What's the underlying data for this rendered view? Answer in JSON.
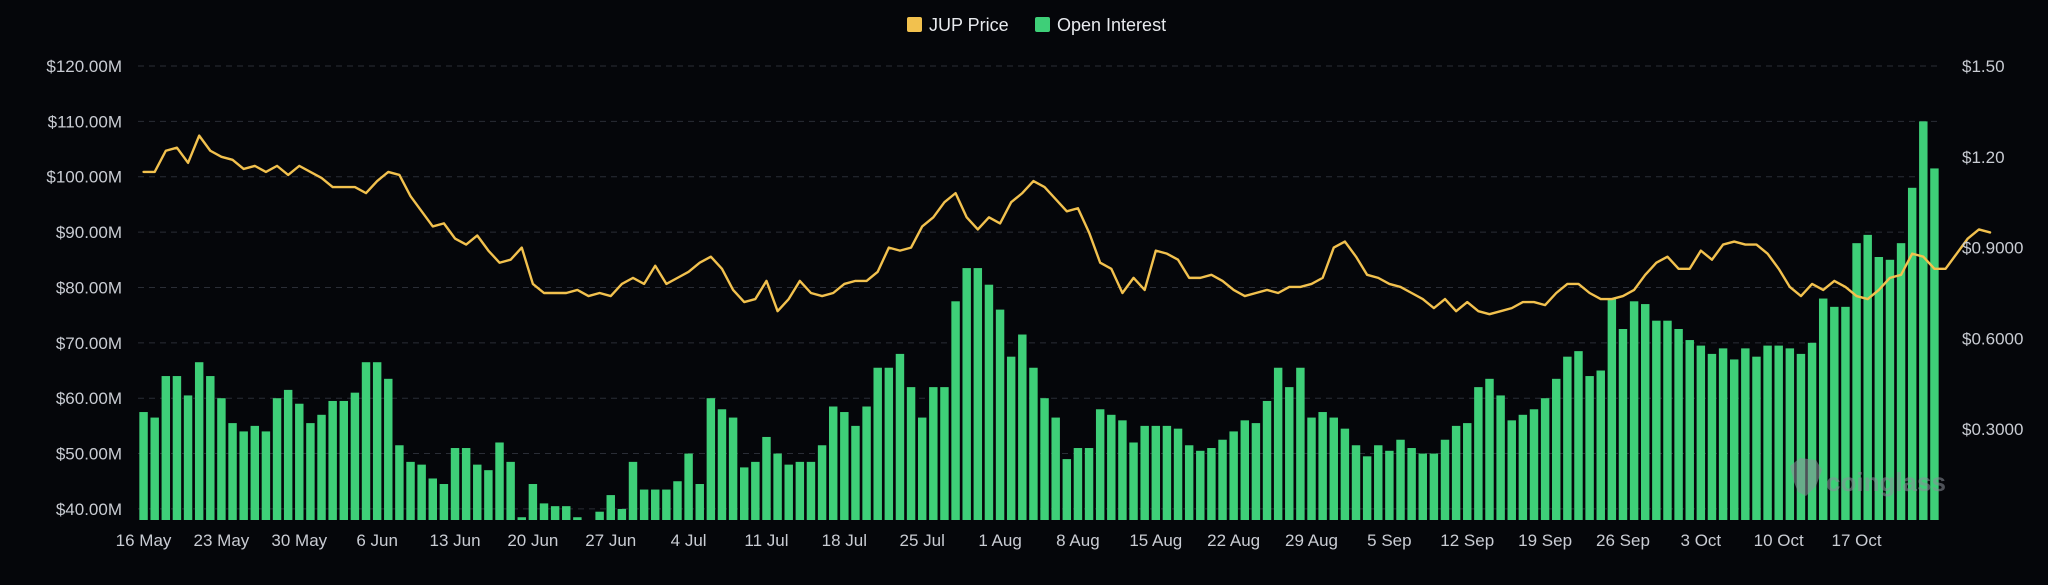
{
  "chart_data": {
    "type": "bar",
    "title": "",
    "legend": {
      "placement": "top-center",
      "items": [
        {
          "label": "JUP Price",
          "color": "#f2c14e"
        },
        {
          "label": "Open Interest",
          "color": "#3ecf78"
        }
      ]
    },
    "x_tick_labels": [
      "16 May",
      "23 May",
      "30 May",
      "6 Jun",
      "13 Jun",
      "20 Jun",
      "27 Jun",
      "4 Jul",
      "11 Jul",
      "18 Jul",
      "25 Jul",
      "1 Aug",
      "8 Aug",
      "15 Aug",
      "22 Aug",
      "29 Aug",
      "5 Sep",
      "12 Sep",
      "19 Sep",
      "26 Sep",
      "3 Oct",
      "10 Oct",
      "17 Oct"
    ],
    "y_left": {
      "label": "",
      "ticks": [
        "$40.00M",
        "$50.00M",
        "$60.00M",
        "$70.00M",
        "$80.00M",
        "$90.00M",
        "$100.00M",
        "$110.00M",
        "$120.00M"
      ],
      "range": [
        38,
        120
      ]
    },
    "y_right": {
      "label": "",
      "ticks": [
        "$0.3000",
        "$0.6000",
        "$0.9000",
        "$1.20",
        "$1.50"
      ],
      "range": [
        0,
        1.5
      ]
    },
    "grid": true,
    "series": [
      {
        "name": "Open Interest",
        "type": "bar",
        "axis": "left",
        "color": "#3ecf78",
        "values": [
          57.5,
          56.5,
          64,
          64,
          60.5,
          66.5,
          64,
          60,
          55.5,
          54,
          55,
          54,
          60,
          61.5,
          59,
          55.5,
          57,
          59.5,
          59.5,
          61,
          66.5,
          66.5,
          63.5,
          51.5,
          48.5,
          48,
          45.5,
          44.5,
          51,
          51,
          48,
          47,
          52,
          48.5,
          38.5,
          44.5,
          41,
          40.5,
          40.5,
          38.5,
          38,
          39.5,
          42.5,
          40,
          48.5,
          43.5,
          43.5,
          43.5,
          45,
          50,
          44.5,
          60,
          58,
          56.5,
          47.5,
          48.5,
          53,
          50,
          48,
          48.5,
          48.5,
          51.5,
          58.5,
          57.5,
          55,
          58.5,
          65.5,
          65.5,
          68,
          62,
          56.5,
          62,
          62,
          77.5,
          83.5,
          83.5,
          80.5,
          76,
          67.5,
          71.5,
          65.5,
          60,
          56.5,
          49,
          51,
          51,
          58,
          57,
          56,
          52,
          55,
          55,
          55,
          54.5,
          51.5,
          50.5,
          51,
          52.5,
          54,
          56,
          55.5,
          59.5,
          65.5,
          62,
          65.5,
          56.5,
          57.5,
          56.5,
          54.5,
          51.5,
          49.5,
          51.5,
          50.5,
          52.5,
          51,
          50,
          50,
          52.5,
          55,
          55.5,
          62,
          63.5,
          60.5,
          56,
          57,
          58,
          60,
          63.5,
          67.5,
          68.5,
          64,
          65,
          78,
          72.5,
          77.5,
          77,
          74,
          74,
          72.5,
          70.5,
          69.5,
          68,
          69,
          67,
          69,
          67.5,
          69.5,
          69.5,
          69,
          68,
          70,
          78,
          76.5,
          76.5,
          88,
          89.5,
          85.5,
          85,
          88,
          98,
          110,
          101.5
        ]
      },
      {
        "name": "JUP Price",
        "type": "line",
        "axis": "right",
        "color": "#f2c14e",
        "values": [
          1.15,
          1.15,
          1.22,
          1.23,
          1.18,
          1.27,
          1.22,
          1.2,
          1.19,
          1.16,
          1.17,
          1.15,
          1.17,
          1.14,
          1.17,
          1.15,
          1.13,
          1.1,
          1.1,
          1.1,
          1.08,
          1.12,
          1.15,
          1.14,
          1.07,
          1.02,
          0.97,
          0.98,
          0.93,
          0.91,
          0.94,
          0.89,
          0.85,
          0.86,
          0.9,
          0.78,
          0.75,
          0.75,
          0.75,
          0.76,
          0.74,
          0.75,
          0.74,
          0.78,
          0.8,
          0.78,
          0.84,
          0.78,
          0.8,
          0.82,
          0.85,
          0.87,
          0.83,
          0.76,
          0.72,
          0.73,
          0.79,
          0.69,
          0.73,
          0.79,
          0.75,
          0.74,
          0.75,
          0.78,
          0.79,
          0.79,
          0.82,
          0.9,
          0.89,
          0.9,
          0.97,
          1.0,
          1.05,
          1.08,
          1.0,
          0.96,
          1.0,
          0.98,
          1.05,
          1.08,
          1.12,
          1.1,
          1.06,
          1.02,
          1.03,
          0.95,
          0.85,
          0.83,
          0.75,
          0.8,
          0.76,
          0.89,
          0.88,
          0.86,
          0.8,
          0.8,
          0.81,
          0.79,
          0.76,
          0.74,
          0.75,
          0.76,
          0.75,
          0.77,
          0.77,
          0.78,
          0.8,
          0.9,
          0.92,
          0.87,
          0.81,
          0.8,
          0.78,
          0.77,
          0.75,
          0.73,
          0.7,
          0.73,
          0.69,
          0.72,
          0.69,
          0.68,
          0.69,
          0.7,
          0.72,
          0.72,
          0.71,
          0.75,
          0.78,
          0.78,
          0.75,
          0.73,
          0.73,
          0.74,
          0.76,
          0.81,
          0.85,
          0.87,
          0.83,
          0.83,
          0.89,
          0.86,
          0.91,
          0.92,
          0.91,
          0.91,
          0.88,
          0.83,
          0.77,
          0.74,
          0.78,
          0.76,
          0.79,
          0.77,
          0.74,
          0.73,
          0.76,
          0.8,
          0.81,
          0.88,
          0.87,
          0.83,
          0.83,
          0.88,
          0.93,
          0.96,
          0.95
        ]
      }
    ]
  },
  "watermark": "coinglass"
}
